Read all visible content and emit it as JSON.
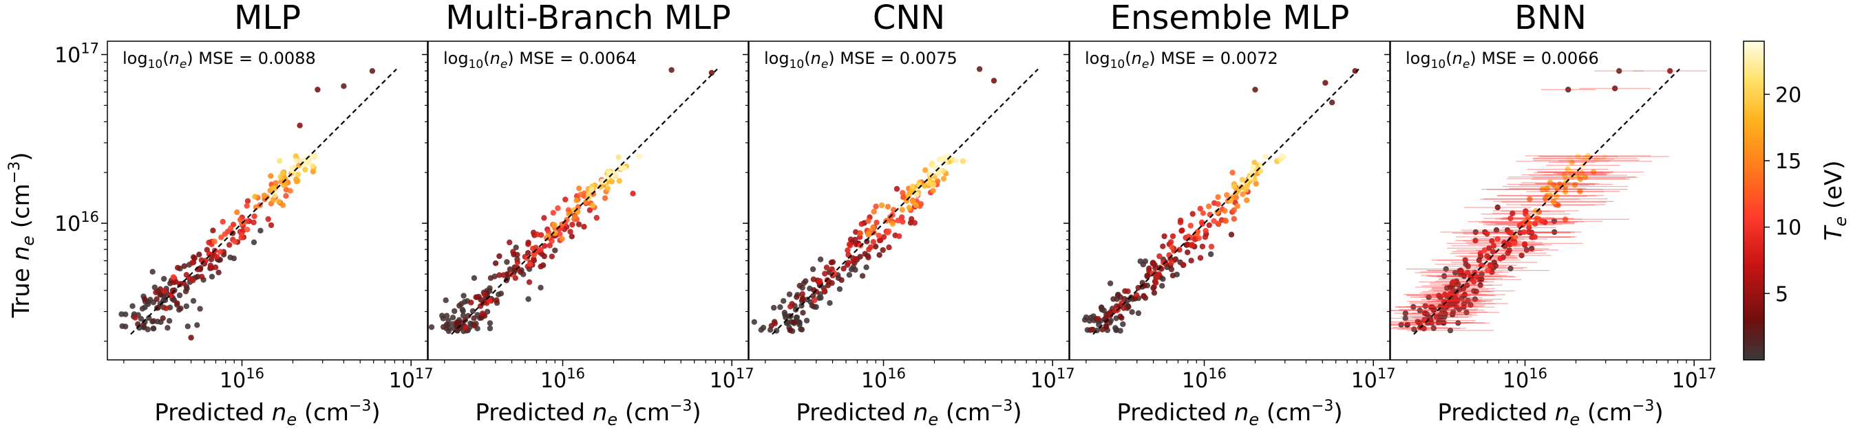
{
  "figure": {
    "y_label": "True n_e (cm^-3)",
    "colorbar_label": "T_e (eV)"
  },
  "chart_data": {
    "type": "scatter",
    "x_scale": "log",
    "y_scale": "log",
    "xlim": [
      1600000000000000.0,
      1.25e+17
    ],
    "ylim": [
      1550000000000000.0,
      1.2e+17
    ],
    "x_ticks": [
      {
        "value": 1e+16,
        "label": "10^16"
      },
      {
        "value": 1e+17,
        "label": "10^17"
      }
    ],
    "y_ticks": [
      {
        "value": 1e+16,
        "label": "10^16"
      },
      {
        "value": 1e+17,
        "label": "10^17"
      }
    ],
    "xlabel": "Predicted n_e (cm^-3)",
    "ylabel": "True n_e (cm^-3)",
    "identity_line": {
      "from": 2200000000000000.0,
      "to": 8.2e+16,
      "style": "dashed"
    },
    "colorbar": {
      "label": "T_e (eV)",
      "range": [
        0,
        24
      ],
      "ticks": [
        5,
        10,
        15,
        20
      ],
      "colormap": "hot"
    },
    "panels": [
      {
        "title": "MLP",
        "metric": "log10(n_e) MSE = 0.0088",
        "seed": 11,
        "scatter": 0.095,
        "error_bars": false,
        "outliers": [
          [
            4e+16,
            6.5e+16,
            2
          ],
          [
            2.8e+16,
            6.2e+16,
            3
          ],
          [
            5.9e+16,
            8e+16,
            2
          ],
          [
            2.2e+16,
            3.8e+16,
            4
          ],
          [
            5000000000000000.0,
            2100000000000000.0,
            3
          ]
        ]
      },
      {
        "title": "Multi-Branch MLP",
        "metric": "log10(n_e) MSE = 0.0064",
        "seed": 23,
        "scatter": 0.08,
        "error_bars": false,
        "outliers": [
          [
            4.4e+16,
            8.1e+16,
            2
          ],
          [
            7.6e+16,
            7.8e+16,
            3
          ],
          [
            2.6e+16,
            1.5e+16,
            8
          ]
        ]
      },
      {
        "title": "CNN",
        "metric": "log10(n_e) MSE = 0.0075",
        "seed": 37,
        "scatter": 0.088,
        "error_bars": false,
        "outliers": [
          [
            3.7e+16,
            8.2e+16,
            2
          ],
          [
            4.5e+16,
            7e+16,
            3
          ],
          [
            1.2e+16,
            1.6e+16,
            6
          ]
        ]
      },
      {
        "title": "Ensemble MLP",
        "metric": "log10(n_e) MSE = 0.0072",
        "seed": 41,
        "scatter": 0.085,
        "error_bars": false,
        "outliers": [
          [
            5.2e+16,
            6.8e+16,
            3
          ],
          [
            5.7e+16,
            5.2e+16,
            2
          ],
          [
            2e+16,
            6.2e+16,
            2
          ],
          [
            7.8e+16,
            8e+16,
            3
          ]
        ]
      },
      {
        "title": "BNN",
        "metric": "log10(n_e) MSE = 0.0066",
        "seed": 53,
        "scatter": 0.09,
        "error_bars": true,
        "outliers": [
          [
            3.6e+16,
            8e+16,
            2
          ],
          [
            7.2e+16,
            8e+16,
            4
          ],
          [
            3.4e+16,
            6.3e+16,
            3
          ],
          [
            1.8e+16,
            6.2e+16,
            2
          ]
        ]
      }
    ]
  }
}
